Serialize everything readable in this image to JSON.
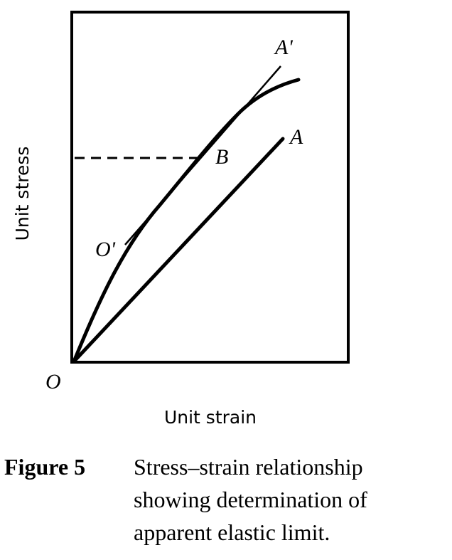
{
  "figure": {
    "labels": {
      "O": "O",
      "O_prime": "O'",
      "A": "A",
      "A_prime": "A'",
      "B": "B"
    },
    "x_axis_label": "Unit strain",
    "y_axis_label": "Unit stress"
  },
  "caption": {
    "number": "Figure 5",
    "lines": [
      "Stress–strain relationship",
      "showing determination of",
      "apparent elastic limit."
    ]
  }
}
